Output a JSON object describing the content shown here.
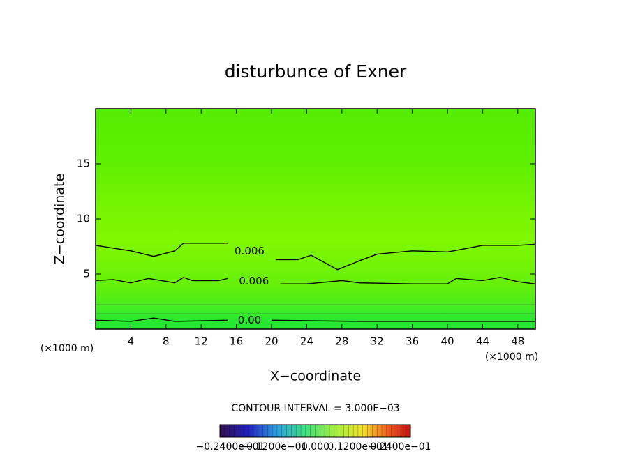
{
  "chart_data": {
    "type": "contour",
    "title": "disturbunce of Exner",
    "x_label": "X−coordinate",
    "y_label": "Z−coordinate",
    "x_unit": "(×1000 m)",
    "y_unit": "(×1000 m)",
    "xlim": [
      0,
      50
    ],
    "ylim": [
      0,
      20
    ],
    "xticks": [
      4,
      8,
      12,
      16,
      20,
      24,
      28,
      32,
      36,
      40,
      44,
      48
    ],
    "yticks": [
      5,
      10,
      15
    ],
    "contours": [
      {
        "label": "0.006",
        "color": "#000000",
        "x": [
          0,
          4,
          6.6,
          9,
          10,
          12,
          15,
          17.5,
          20.5,
          23,
          24.5,
          27.5,
          30,
          32,
          36,
          40,
          44,
          48,
          50
        ],
        "z": [
          7.6,
          7.1,
          6.6,
          7.1,
          7.8,
          7.8,
          7.8,
          null,
          6.3,
          6.3,
          6.7,
          5.4,
          6.2,
          6.8,
          7.1,
          7.0,
          7.6,
          7.6,
          7.7
        ]
      },
      {
        "label": "0.006",
        "color": "#000000",
        "x": [
          0,
          2,
          4,
          6,
          9,
          10,
          11,
          14,
          15,
          18,
          21,
          24,
          28,
          30,
          36,
          40,
          41,
          44,
          46,
          48,
          50
        ],
        "z": [
          4.4,
          4.5,
          4.2,
          4.6,
          4.2,
          4.7,
          4.4,
          4.4,
          4.6,
          null,
          4.1,
          4.1,
          4.4,
          4.2,
          4.1,
          4.1,
          4.6,
          4.4,
          4.7,
          4.3,
          4.1
        ]
      },
      {
        "label": "0.00",
        "color": "#000000",
        "x": [
          0,
          4,
          6.6,
          9,
          15,
          17.5,
          20,
          30,
          40,
          48,
          50
        ],
        "z": [
          0.8,
          0.7,
          1.0,
          0.7,
          0.8,
          null,
          0.8,
          0.7,
          0.7,
          0.7,
          0.7
        ]
      }
    ],
    "contour_interval": "CONTOUR INTERVAL = 3.000E−03",
    "colorbar_labels": [
      "−0.2400e−01",
      "−0.1200e−01",
      "0.000",
      "0.1200e−01",
      "0.2400e−01"
    ]
  }
}
